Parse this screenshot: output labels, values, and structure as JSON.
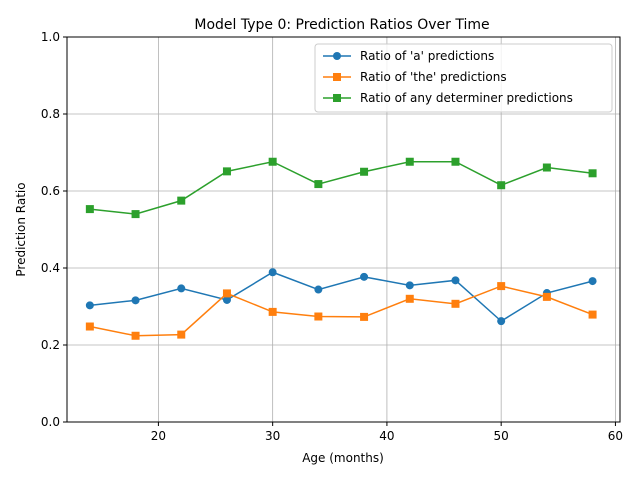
{
  "chart_data": {
    "type": "line",
    "title": "Model Type 0: Prediction Ratios Over Time",
    "xlabel": "Age (months)",
    "ylabel": "Prediction Ratio",
    "xlim": [
      12,
      60.4
    ],
    "ylim": [
      0,
      1.0
    ],
    "xticks": [
      20,
      30,
      40,
      50,
      60
    ],
    "yticks": [
      0.0,
      0.2,
      0.4,
      0.6,
      0.8,
      1.0
    ],
    "grid": true,
    "legend_position": "top-right",
    "x": [
      14,
      18,
      22,
      26,
      30,
      34,
      38,
      42,
      46,
      50,
      54,
      58
    ],
    "series": [
      {
        "name": "Ratio of 'a' predictions",
        "color": "#1f77b4",
        "marker": "circle",
        "values": [
          0.303,
          0.316,
          0.347,
          0.317,
          0.389,
          0.344,
          0.377,
          0.355,
          0.368,
          0.262,
          0.335,
          0.366
        ]
      },
      {
        "name": "Ratio of 'the' predictions",
        "color": "#ff7f0e",
        "marker": "square",
        "values": [
          0.248,
          0.224,
          0.227,
          0.334,
          0.286,
          0.274,
          0.273,
          0.32,
          0.307,
          0.353,
          0.325,
          0.279
        ]
      },
      {
        "name": "Ratio of any determiner predictions",
        "color": "#2ca02c",
        "marker": "square",
        "values": [
          0.553,
          0.54,
          0.575,
          0.651,
          0.676,
          0.618,
          0.65,
          0.676,
          0.676,
          0.615,
          0.661,
          0.646
        ]
      }
    ]
  }
}
